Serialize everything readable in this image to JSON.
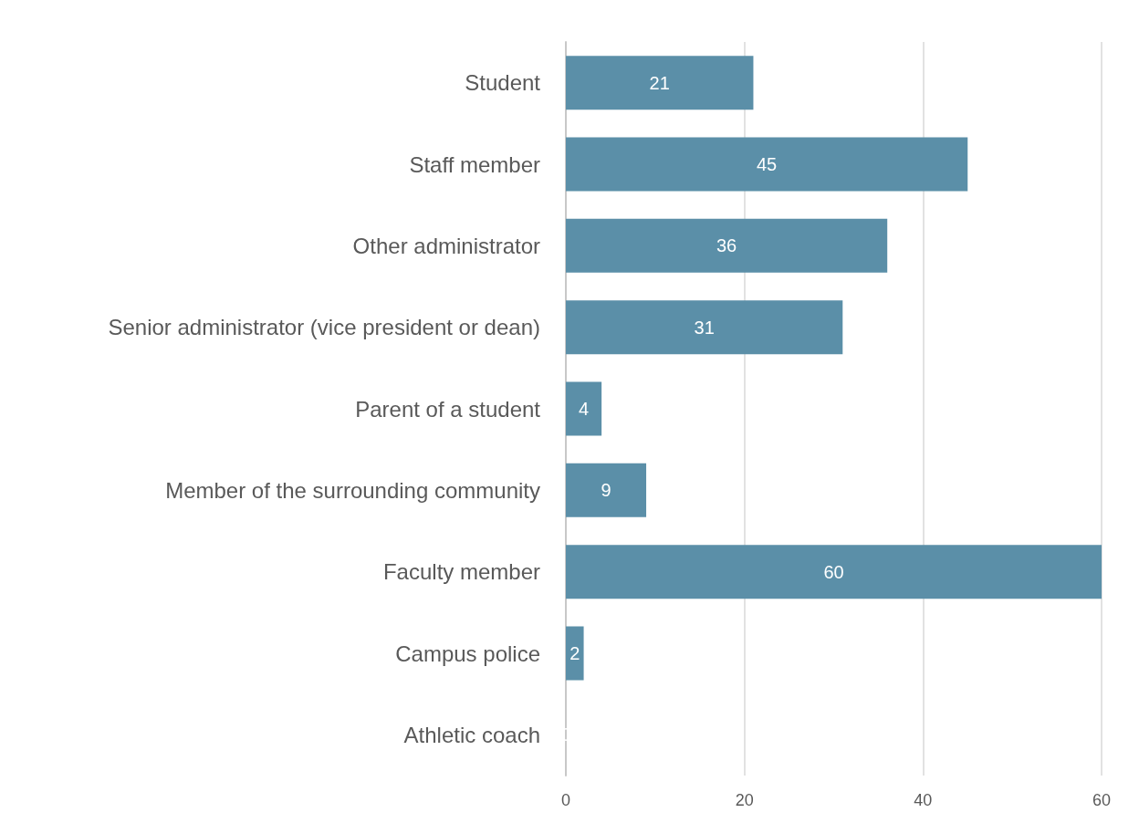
{
  "chart_data": {
    "type": "bar",
    "orientation": "horizontal",
    "categories": [
      "Student",
      "Staff member",
      "Other administrator",
      "Senior administrator (vice president or dean)",
      "Parent of a student",
      "Member of the surrounding community",
      "Faculty member",
      "Campus police",
      "Athletic coach"
    ],
    "values": [
      21,
      45,
      36,
      31,
      4,
      9,
      60,
      2,
      0
    ],
    "color": "#5b8fa8",
    "xlim": [
      0,
      60
    ],
    "xticks": [
      0,
      20,
      40,
      60
    ],
    "grid": "x",
    "data_labels": true
  }
}
